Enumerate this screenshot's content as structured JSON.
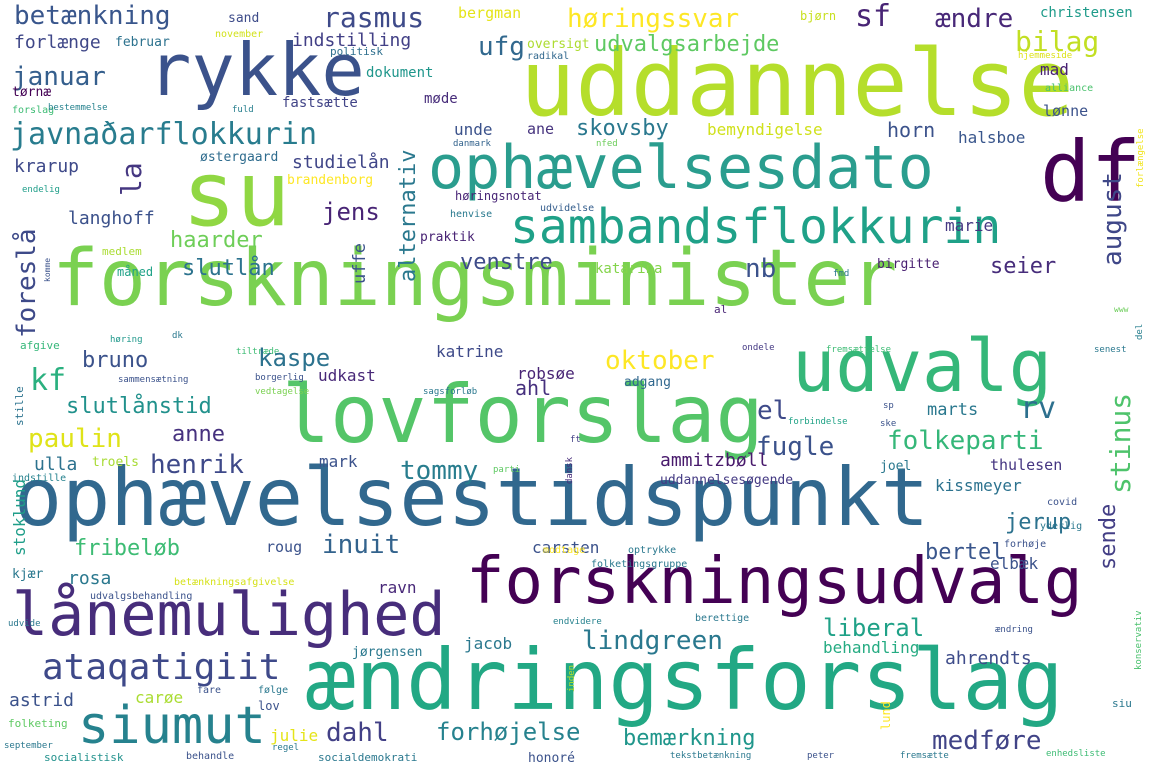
{
  "words": [
    {
      "id": "forskningsminister",
      "text": "forskningsminister",
      "color": "#7ad151"
    },
    {
      "id": "uddannelse",
      "text": "uddannelse",
      "color": "#b5de2b"
    },
    {
      "id": "ophaevelsestidspunkt",
      "text": "ophævelsestidspunkt",
      "color": "#31688e"
    },
    {
      "id": "aendringsforslag",
      "text": "ændringsforslag",
      "color": "#22a884"
    },
    {
      "id": "lovforslag",
      "text": "lovforslag",
      "color": "#54c568"
    },
    {
      "id": "forskningsudvalg",
      "text": "forskningsudvalg",
      "color": "#440154"
    },
    {
      "id": "ophaevelsesdato",
      "text": "ophævelsesdato",
      "color": "#2a9d8e"
    },
    {
      "id": "rykke",
      "text": "rykke",
      "color": "#3b528b"
    },
    {
      "id": "su",
      "text": "su",
      "color": "#90d743"
    },
    {
      "id": "df",
      "text": "df",
      "color": "#440154"
    },
    {
      "id": "udvalg",
      "text": "udvalg",
      "color": "#35b779"
    },
    {
      "id": "sambandsflokkurin",
      "text": "sambandsflokkurin",
      "color": "#1fa188"
    },
    {
      "id": "lanemulighed",
      "text": "lånemulighed",
      "color": "#472d7b"
    },
    {
      "id": "siumut",
      "text": "siumut",
      "color": "#26828e"
    },
    {
      "id": "ataqatigiit",
      "text": "ataqatigiit",
      "color": "#3e4989"
    },
    {
      "id": "javnadarflokkurin",
      "text": "javnaðarflokkurin",
      "color": "#287c8e"
    },
    {
      "id": "betaenkning",
      "text": "betænkning",
      "color": "#39568c"
    },
    {
      "id": "rasmus",
      "text": "rasmus",
      "color": "#3e4a89"
    },
    {
      "id": "horingssvar",
      "text": "høringssvar",
      "color": "#fde725"
    },
    {
      "id": "sf",
      "text": "sf",
      "color": "#482475"
    },
    {
      "id": "aendre",
      "text": "ændre",
      "color": "#482878"
    },
    {
      "id": "ufg",
      "text": "ufg",
      "color": "#31688e"
    },
    {
      "id": "udvalgsarbejde",
      "text": "udvalgsarbejde",
      "color": "#5ec962"
    },
    {
      "id": "bilag",
      "text": "bilag",
      "color": "#c2df23"
    },
    {
      "id": "januar",
      "text": "januar",
      "color": "#355f8d"
    },
    {
      "id": "forlaenge",
      "text": "forlænge",
      "color": "#3f4788"
    },
    {
      "id": "februar",
      "text": "februar",
      "color": "#2c728e"
    },
    {
      "id": "indstilling",
      "text": "indstilling",
      "color": "#424086"
    },
    {
      "id": "sand",
      "text": "sand",
      "color": "#3e4c8a"
    },
    {
      "id": "november",
      "text": "november",
      "color": "#d2e21b"
    },
    {
      "id": "bergman",
      "text": "bergman",
      "color": "#e5e419"
    },
    {
      "id": "bjorn",
      "text": "bjørn",
      "color": "#c8e020"
    },
    {
      "id": "christensen",
      "text": "christensen",
      "color": "#1e9b8a"
    },
    {
      "id": "politisk",
      "text": "politisk",
      "color": "#2e6f8e"
    },
    {
      "id": "oversigt",
      "text": "oversigt",
      "color": "#addc30"
    },
    {
      "id": "radikal",
      "text": "radikal",
      "color": "#31688e"
    },
    {
      "id": "hjemmeside",
      "text": "hjemmeside",
      "color": "#dde318"
    },
    {
      "id": "mad",
      "text": "mad",
      "color": "#482173"
    },
    {
      "id": "dokument",
      "text": "dokument",
      "color": "#1f968b"
    },
    {
      "id": "alternativ",
      "text": "alternativ",
      "color": "#2a788e"
    },
    {
      "id": "tornae",
      "text": "tørnæ",
      "color": "#440154"
    },
    {
      "id": "forslag",
      "text": "forslag",
      "color": "#3dbc74"
    },
    {
      "id": "bestemmelse",
      "text": "bestemmelse",
      "color": "#26828e"
    },
    {
      "id": "fuld",
      "text": "fuld",
      "color": "#277f8e"
    },
    {
      "id": "fastsaette",
      "text": "fastsætte",
      "color": "#414487"
    },
    {
      "id": "mode",
      "text": "møde",
      "color": "#472c7a"
    },
    {
      "id": "alliance",
      "text": "alliance",
      "color": "#4ac16d"
    },
    {
      "id": "lonne",
      "text": "lønne",
      "color": "#3b528b"
    },
    {
      "id": "forlaengelse",
      "text": "forlængelse",
      "color": "#f1e51d"
    },
    {
      "id": "la",
      "text": "la",
      "color": "#453781"
    },
    {
      "id": "unde",
      "text": "unde",
      "color": "#3b528b"
    },
    {
      "id": "ane",
      "text": "ane",
      "color": "#46337e"
    },
    {
      "id": "skovsby",
      "text": "skovsby",
      "color": "#2a788e"
    },
    {
      "id": "bemyndigelse",
      "text": "bemyndigelse",
      "color": "#d0e11c"
    },
    {
      "id": "horn",
      "text": "horn",
      "color": "#3b528b"
    },
    {
      "id": "halsboe",
      "text": "halsboe",
      "color": "#39568c"
    },
    {
      "id": "krarup",
      "text": "krarup",
      "color": "#3e4989"
    },
    {
      "id": "ostergaard",
      "text": "østergaard",
      "color": "#2f6c8e"
    },
    {
      "id": "studielan",
      "text": "studielån",
      "color": "#404688"
    },
    {
      "id": "danmark",
      "text": "danmark",
      "color": "#33638d"
    },
    {
      "id": "nfed",
      "text": "nfed",
      "color": "#6ccd5a"
    },
    {
      "id": "endelig",
      "text": "endelig",
      "color": "#1f9e89"
    },
    {
      "id": "brandenborg",
      "text": "brandenborg",
      "color": "#fde725"
    },
    {
      "id": "foresla",
      "text": "foreslå",
      "color": "#3e4a89"
    },
    {
      "id": "august",
      "text": "august",
      "color": "#3f4788"
    },
    {
      "id": "jens",
      "text": "jens",
      "color": "#482475"
    },
    {
      "id": "horingsnotat",
      "text": "høringsnotat",
      "color": "#482576"
    },
    {
      "id": "henvise",
      "text": "henvise",
      "color": "#29798e"
    },
    {
      "id": "udvidelse",
      "text": "udvidelse",
      "color": "#355e8d"
    },
    {
      "id": "marie",
      "text": "marie",
      "color": "#453882"
    },
    {
      "id": "langhoff",
      "text": "langhoff",
      "color": "#3b518b"
    },
    {
      "id": "haarder",
      "text": "haarder",
      "color": "#6ece58"
    },
    {
      "id": "praktik",
      "text": "praktik",
      "color": "#482374"
    },
    {
      "id": "slutlan",
      "text": "slutlån",
      "color": "#2c738e"
    },
    {
      "id": "venstre",
      "text": "venstre",
      "color": "#3e4c8a"
    },
    {
      "id": "nb",
      "text": "nb",
      "color": "#3b528b"
    },
    {
      "id": "seier",
      "text": "seier",
      "color": "#472d7b"
    },
    {
      "id": "uffe",
      "text": "uffe",
      "color": "#3b528b"
    },
    {
      "id": "medlem",
      "text": "medlem",
      "color": "#aadc32"
    },
    {
      "id": "maned",
      "text": "måned",
      "color": "#1fa287"
    },
    {
      "id": "katarina",
      "text": "katarina",
      "color": "#84d44b"
    },
    {
      "id": "birgitte",
      "text": "birgitte",
      "color": "#481f71"
    },
    {
      "id": "fmd",
      "text": "fmd",
      "color": "#2a768e"
    },
    {
      "id": "komme",
      "text": "komme",
      "color": "#3b528b"
    },
    {
      "id": "al",
      "text": "al",
      "color": "#482475"
    },
    {
      "id": "www",
      "text": "www",
      "color": "#6ccd5a"
    },
    {
      "id": "del",
      "text": "del",
      "color": "#277f8e"
    },
    {
      "id": "afgive",
      "text": "afgive",
      "color": "#35b779"
    },
    {
      "id": "horing",
      "text": "høring",
      "color": "#1f988b"
    },
    {
      "id": "dk",
      "text": "dk",
      "color": "#2a788e"
    },
    {
      "id": "tiltraede",
      "text": "tiltræde",
      "color": "#3dbc74"
    },
    {
      "id": "ondele",
      "text": "ondele",
      "color": "#443983"
    },
    {
      "id": "fremsaettelse",
      "text": "fremsættelse",
      "color": "#3dbc74"
    },
    {
      "id": "senest",
      "text": "senest",
      "color": "#2a788e"
    },
    {
      "id": "bruno",
      "text": "bruno",
      "color": "#3b528b"
    },
    {
      "id": "kaspe",
      "text": "kaspe",
      "color": "#2c728e"
    },
    {
      "id": "katrine",
      "text": "katrine",
      "color": "#3e4a89"
    },
    {
      "id": "oktober",
      "text": "oktober",
      "color": "#fde725"
    },
    {
      "id": "kf",
      "text": "kf",
      "color": "#2ab07f"
    },
    {
      "id": "udkast",
      "text": "udkast",
      "color": "#482878"
    },
    {
      "id": "sammensaetning",
      "text": "sammensætning",
      "color": "#3b528b"
    },
    {
      "id": "borgerlig",
      "text": "borgerlig",
      "color": "#3b528b"
    },
    {
      "id": "robsoe",
      "text": "robsøe",
      "color": "#482475"
    },
    {
      "id": "adgang",
      "text": "adgang",
      "color": "#31688e"
    },
    {
      "id": "ahl",
      "text": "ahl",
      "color": "#46307e"
    },
    {
      "id": "stille",
      "text": "stille",
      "color": "#2c738e"
    },
    {
      "id": "vedtagelse",
      "text": "vedtagelse",
      "color": "#7ad151"
    },
    {
      "id": "sagsforlob",
      "text": "sagsforløb",
      "color": "#2a788e"
    },
    {
      "id": "slutlanstid",
      "text": "slutlånstid",
      "color": "#21918c"
    },
    {
      "id": "rv",
      "text": "rv",
      "color": "#2d708e"
    },
    {
      "id": "el",
      "text": "el",
      "color": "#3e4a89"
    },
    {
      "id": "marts",
      "text": "marts",
      "color": "#2a788e"
    },
    {
      "id": "sp",
      "text": "sp",
      "color": "#3b528b"
    },
    {
      "id": "ske",
      "text": "ske",
      "color": "#3b528b"
    },
    {
      "id": "paulin",
      "text": "paulin",
      "color": "#dfe318"
    },
    {
      "id": "anne",
      "text": "anne",
      "color": "#46317e"
    },
    {
      "id": "forbindelse",
      "text": "forbindelse",
      "color": "#20a386"
    },
    {
      "id": "fugle",
      "text": "fugle",
      "color": "#3b528b"
    },
    {
      "id": "folkeparti",
      "text": "folkeparti",
      "color": "#35b779"
    },
    {
      "id": "stinus",
      "text": "stinus",
      "color": "#4ec36b"
    },
    {
      "id": "ulla",
      "text": "ulla",
      "color": "#2c728e"
    },
    {
      "id": "henrik",
      "text": "henrik",
      "color": "#3e4989"
    },
    {
      "id": "tommy",
      "text": "tommy",
      "color": "#287d8e"
    },
    {
      "id": "ft",
      "text": "ft",
      "color": "#424086"
    },
    {
      "id": "mark",
      "text": "mark",
      "color": "#3b528b"
    },
    {
      "id": "ammitzboll",
      "text": "ammitzbøll",
      "color": "#481a6c"
    },
    {
      "id": "thulesen",
      "text": "thulesen",
      "color": "#453581"
    },
    {
      "id": "joel",
      "text": "joel",
      "color": "#2a788e"
    },
    {
      "id": "troels",
      "text": "troels",
      "color": "#a8db34"
    },
    {
      "id": "indstille",
      "text": "indstille",
      "color": "#26828e"
    },
    {
      "id": "dansk",
      "text": "dansk",
      "color": "#472c7a"
    },
    {
      "id": "parti",
      "text": "parti",
      "color": "#5ec962"
    },
    {
      "id": "uddannelsesogende",
      "text": "uddannelsesøgende",
      "color": "#443a83"
    },
    {
      "id": "kissmeyer",
      "text": "kissmeyer",
      "color": "#2c728e"
    },
    {
      "id": "covid",
      "text": "covid",
      "color": "#3b528b"
    },
    {
      "id": "yderlig",
      "text": "yderlig",
      "color": "#2a788e"
    },
    {
      "id": "stoklund",
      "text": "stoklund",
      "color": "#1f9e89"
    },
    {
      "id": "sende",
      "text": "sende",
      "color": "#433e85"
    },
    {
      "id": "jerup",
      "text": "jerup",
      "color": "#2c728e"
    },
    {
      "id": "inuit",
      "text": "inuit",
      "color": "#33638d"
    },
    {
      "id": "fribelob",
      "text": "fribeløb",
      "color": "#3dbc74"
    },
    {
      "id": "bertel",
      "text": "bertel",
      "color": "#39568c"
    },
    {
      "id": "roug",
      "text": "roug",
      "color": "#3b528b"
    },
    {
      "id": "carsten",
      "text": "carsten",
      "color": "#3b528b"
    },
    {
      "id": "elbaek",
      "text": "elbæk",
      "color": "#3b528b"
    },
    {
      "id": "kjaer",
      "text": "kjær",
      "color": "#2a788e"
    },
    {
      "id": "rosa",
      "text": "rosa",
      "color": "#2a788e"
    },
    {
      "id": "modtage",
      "text": "modtage",
      "color": "#fde725"
    },
    {
      "id": "optrykke",
      "text": "optrykke",
      "color": "#2a788e"
    },
    {
      "id": "forhoje",
      "text": "forhøje",
      "color": "#3b528b"
    },
    {
      "id": "folketingsgruppe",
      "text": "folketingsgruppe",
      "color": "#2a788e"
    },
    {
      "id": "betaenkningsafgivelse",
      "text": "betænkningsafgivelse",
      "color": "#d5e21a"
    },
    {
      "id": "udvalgsbehandling",
      "text": "udvalgsbehandling",
      "color": "#3b528b"
    },
    {
      "id": "ravn",
      "text": "ravn",
      "color": "#482878"
    },
    {
      "id": "lindgreen",
      "text": "lindgreen",
      "color": "#2a788e"
    },
    {
      "id": "liberal",
      "text": "liberal",
      "color": "#1fa187"
    },
    {
      "id": "konservativ",
      "text": "konservativ",
      "color": "#4ac16d"
    },
    {
      "id": "udvide",
      "text": "udvide",
      "color": "#2a788e"
    },
    {
      "id": "endvidere",
      "text": "endvidere",
      "color": "#26828e"
    },
    {
      "id": "berettige",
      "text": "berettige",
      "color": "#2a788e"
    },
    {
      "id": "aendring",
      "text": "ændring",
      "color": "#3b528b"
    },
    {
      "id": "jacob",
      "text": "jacob",
      "color": "#2a788e"
    },
    {
      "id": "behandling",
      "text": "behandling",
      "color": "#25ab82"
    },
    {
      "id": "jorgensen",
      "text": "jørgensen",
      "color": "#2a788e"
    },
    {
      "id": "ahrendts",
      "text": "ahrendts",
      "color": "#3e4c8a"
    },
    {
      "id": "astrid",
      "text": "astrid",
      "color": "#3b528b"
    },
    {
      "id": "caroe",
      "text": "carøe",
      "color": "#aadc32"
    },
    {
      "id": "fare",
      "text": "fare",
      "color": "#3b528b"
    },
    {
      "id": "folge",
      "text": "følge",
      "color": "#2a788e"
    },
    {
      "id": "inden",
      "text": "inden",
      "color": "#b5de2b"
    },
    {
      "id": "lov",
      "text": "lov",
      "color": "#3b528b"
    },
    {
      "id": "lund",
      "text": "lund",
      "color": "#fde725"
    },
    {
      "id": "siu",
      "text": "siu",
      "color": "#2a788e"
    },
    {
      "id": "folketing",
      "text": "folketing",
      "color": "#5ec962"
    },
    {
      "id": "dahl",
      "text": "dahl",
      "color": "#424086"
    },
    {
      "id": "forhojelse",
      "text": "forhøjelse",
      "color": "#26828e"
    },
    {
      "id": "bemaerkning",
      "text": "bemærkning",
      "color": "#1f968b"
    },
    {
      "id": "medfore",
      "text": "medføre",
      "color": "#414487"
    },
    {
      "id": "julie",
      "text": "julie",
      "color": "#e5e419"
    },
    {
      "id": "september",
      "text": "september",
      "color": "#2a788e"
    },
    {
      "id": "regel",
      "text": "regel",
      "color": "#2a788e"
    },
    {
      "id": "socialistisk",
      "text": "socialistisk",
      "color": "#21918c"
    },
    {
      "id": "behandle",
      "text": "behandle",
      "color": "#3b528b"
    },
    {
      "id": "socialdemokrati",
      "text": "socialdemokrati",
      "color": "#2a788e"
    },
    {
      "id": "honore",
      "text": "honoré",
      "color": "#3b528b"
    },
    {
      "id": "tekstbetaenkning",
      "text": "tekstbetænkning",
      "color": "#2a788e"
    },
    {
      "id": "peter",
      "text": "peter",
      "color": "#3b528b"
    },
    {
      "id": "fremsaette",
      "text": "fremsætte",
      "color": "#2a788e"
    },
    {
      "id": "enhedsliste",
      "text": "enhedsliste",
      "color": "#3dbc74"
    }
  ]
}
